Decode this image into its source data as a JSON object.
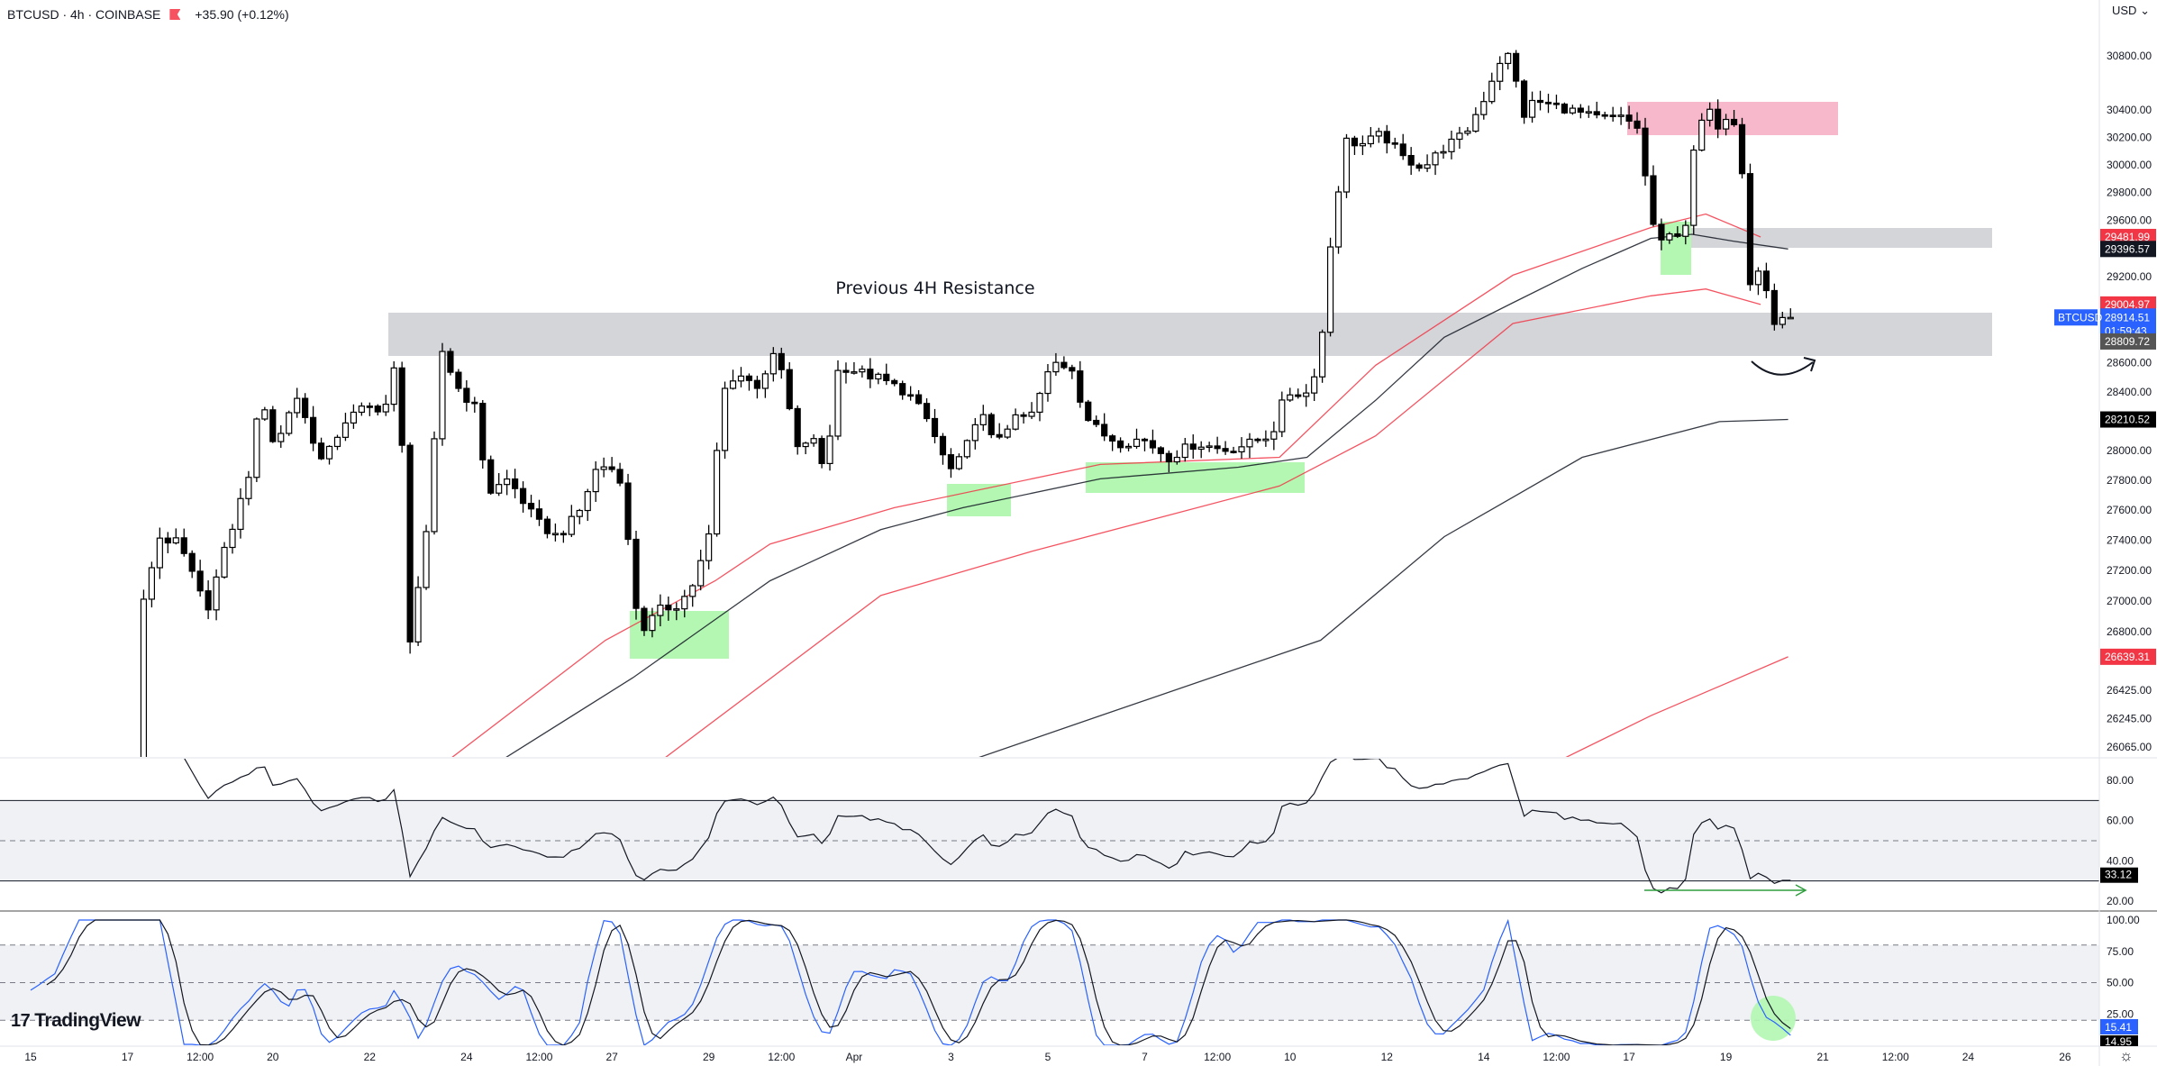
{
  "header": {
    "symbol_line": "BTCUSD · 4h · COINBASE",
    "change": "+35.90 (+0.12%)",
    "currency": "USD",
    "currency_chevron": "⌄"
  },
  "logo": {
    "mark": "17",
    "text": "TradingView"
  },
  "annotation": "Previous 4H Resistance",
  "colors": {
    "red": "#f23645",
    "blue": "#2962ff",
    "black": "#131722",
    "zone_grey": "#d4d5d9",
    "zone_pink": "#f7b8cc",
    "zone_green": "#b3f7b3",
    "band": "#f0f1f4"
  },
  "chart_data": {
    "type": "candlestick",
    "title": "BTCUSD · 4h · COINBASE",
    "scale": "log",
    "price_axis_ticks": [
      "30800.00",
      "30400.00",
      "30200.00",
      "30000.00",
      "29800.00",
      "29600.00",
      "29200.00",
      "28600.00",
      "28400.00",
      "28000.00",
      "27800.00",
      "27600.00",
      "27400.00",
      "27200.00",
      "27000.00",
      "26800.00",
      "26425.00",
      "26245.00",
      "26065.00"
    ],
    "time_axis": [
      {
        "label": "15",
        "day": 0
      },
      {
        "label": "17",
        "day": 2
      },
      {
        "label": "12:00",
        "day": 3.5
      },
      {
        "label": "20",
        "day": 5
      },
      {
        "label": "22",
        "day": 7
      },
      {
        "label": "24",
        "day": 9
      },
      {
        "label": "12:00",
        "day": 10.5
      },
      {
        "label": "27",
        "day": 12
      },
      {
        "label": "29",
        "day": 14
      },
      {
        "label": "12:00",
        "day": 15.5
      },
      {
        "label": "Apr",
        "day": 17
      },
      {
        "label": "3",
        "day": 19
      },
      {
        "label": "5",
        "day": 21
      },
      {
        "label": "7",
        "day": 23
      },
      {
        "label": "12:00",
        "day": 24.5
      },
      {
        "label": "10",
        "day": 26
      },
      {
        "label": "12",
        "day": 28
      },
      {
        "label": "14",
        "day": 30
      },
      {
        "label": "12:00",
        "day": 31.5
      },
      {
        "label": "17",
        "day": 33
      },
      {
        "label": "19",
        "day": 35
      },
      {
        "label": "21",
        "day": 37
      },
      {
        "label": "12:00",
        "day": 38.5
      },
      {
        "label": "24",
        "day": 40
      },
      {
        "label": "26",
        "day": 42
      }
    ],
    "close_waypoints_candle_index_price": [
      [
        -30,
        24500
      ],
      [
        0,
        25500
      ],
      [
        13,
        25970
      ],
      [
        14,
        26988
      ],
      [
        15.8,
        27423
      ],
      [
        18.4,
        27374
      ],
      [
        21.8,
        26940
      ],
      [
        24.3,
        27374
      ],
      [
        26.9,
        27809
      ],
      [
        28.6,
        28390
      ],
      [
        30.3,
        28003
      ],
      [
        32.8,
        28390
      ],
      [
        36.2,
        27906
      ],
      [
        38.8,
        28196
      ],
      [
        41.4,
        28292
      ],
      [
        43.9,
        28292
      ],
      [
        45.6,
        28679
      ],
      [
        46.8,
        26698
      ],
      [
        49,
        27423
      ],
      [
        51,
        28679
      ],
      [
        52.8,
        28437
      ],
      [
        55,
        28292
      ],
      [
        56.7,
        27713
      ],
      [
        59.2,
        27809
      ],
      [
        62.7,
        27519
      ],
      [
        65.2,
        27423
      ],
      [
        67.8,
        27568
      ],
      [
        70.3,
        27906
      ],
      [
        72.9,
        27858
      ],
      [
        75.4,
        26794
      ],
      [
        78,
        26940
      ],
      [
        80.5,
        26988
      ],
      [
        82.3,
        27133
      ],
      [
        84,
        27423
      ],
      [
        85.7,
        28390
      ],
      [
        87.4,
        28534
      ],
      [
        89.9,
        28437
      ],
      [
        92.5,
        28679
      ],
      [
        95,
        28003
      ],
      [
        96.7,
        28100
      ],
      [
        98.4,
        27858
      ],
      [
        100.1,
        28583
      ],
      [
        102.7,
        28534
      ],
      [
        105.3,
        28486
      ],
      [
        108.7,
        28390
      ],
      [
        111.2,
        28196
      ],
      [
        113.8,
        27858
      ],
      [
        115.5,
        27954
      ],
      [
        117.5,
        28292
      ],
      [
        119.2,
        28051
      ],
      [
        121.4,
        28196
      ],
      [
        124,
        28244
      ],
      [
        126.6,
        28602
      ],
      [
        129.1,
        28563
      ],
      [
        130.5,
        28244
      ],
      [
        132.5,
        28118
      ],
      [
        135.1,
        28051
      ],
      [
        137.6,
        28080
      ],
      [
        141,
        27954
      ],
      [
        144.4,
        28051
      ],
      [
        147.8,
        28003
      ],
      [
        151.3,
        28051
      ],
      [
        153.8,
        28118
      ],
      [
        155.5,
        28390
      ],
      [
        158.1,
        28390
      ],
      [
        159.8,
        28660
      ],
      [
        160.6,
        29259
      ],
      [
        161.8,
        29742
      ],
      [
        162.8,
        30177
      ],
      [
        164.9,
        30148
      ],
      [
        167.4,
        30225
      ],
      [
        170,
        30051
      ],
      [
        172.6,
        29983
      ],
      [
        175.1,
        30129
      ],
      [
        177.7,
        30225
      ],
      [
        179.9,
        30467
      ],
      [
        181.9,
        30757
      ],
      [
        183.6,
        30825
      ],
      [
        184.5,
        30322
      ],
      [
        186.2,
        30467
      ],
      [
        189.6,
        30419
      ],
      [
        193.9,
        30341
      ],
      [
        197.3,
        30341
      ],
      [
        199,
        30274
      ],
      [
        200.2,
        29839
      ],
      [
        201.5,
        29404
      ],
      [
        203.2,
        29500
      ],
      [
        204.9,
        29530
      ],
      [
        206.1,
        30129
      ],
      [
        207.5,
        30419
      ],
      [
        209.2,
        30274
      ],
      [
        210.6,
        30419
      ],
      [
        211.8,
        30129
      ],
      [
        213,
        29162
      ],
      [
        214.3,
        29259
      ],
      [
        216,
        28872
      ],
      [
        217,
        28920
      ],
      [
        218,
        28914.51
      ]
    ],
    "moving_averages": [
      {
        "name": "ma-black-fast",
        "color": "#131722",
        "points": [
          [
            55,
            25876
          ],
          [
            74.6,
            26505
          ],
          [
            91.6,
            27133
          ],
          [
            105.3,
            27470
          ],
          [
            115.5,
            27616
          ],
          [
            132.5,
            27809
          ],
          [
            149.6,
            27887
          ],
          [
            158.1,
            27954
          ],
          [
            166.6,
            28341
          ],
          [
            175.1,
            28776
          ],
          [
            183.6,
            29017
          ],
          [
            192.2,
            29259
          ],
          [
            200.7,
            29472
          ],
          [
            205.8,
            29501
          ],
          [
            210.9,
            29452
          ],
          [
            217.7,
            29396.57
          ]
        ]
      },
      {
        "name": "envelope-upper",
        "color": "#f23645",
        "points": [
          [
            49,
            25876
          ],
          [
            71.2,
            26746
          ],
          [
            84.8,
            27133
          ],
          [
            91.6,
            27375
          ],
          [
            107,
            27616
          ],
          [
            132.5,
            27906
          ],
          [
            154.7,
            27954
          ],
          [
            166.6,
            28582
          ],
          [
            183.6,
            29211
          ],
          [
            200.7,
            29549
          ],
          [
            207.5,
            29646
          ],
          [
            214.3,
            29481.99
          ]
        ]
      },
      {
        "name": "envelope-lower",
        "color": "#f23645",
        "points": [
          [
            75.4,
            25876
          ],
          [
            105.3,
            27036
          ],
          [
            124,
            27326
          ],
          [
            154.7,
            27761
          ],
          [
            166.6,
            28099
          ],
          [
            183.6,
            28872
          ],
          [
            200.7,
            29066
          ],
          [
            207.5,
            29114
          ],
          [
            214.3,
            29004.97
          ]
        ]
      },
      {
        "name": "ma-black-slow",
        "color": "#131722",
        "points": [
          [
            110.4,
            25876
          ],
          [
            132.5,
            26263
          ],
          [
            159.8,
            26746
          ],
          [
            175.1,
            27423
          ],
          [
            192.2,
            27954
          ],
          [
            209.2,
            28196
          ],
          [
            217.7,
            28210.52
          ]
        ]
      },
      {
        "name": "envelope-slow-lower",
        "color": "#f23645",
        "points": [
          [
            185.2,
            25876
          ],
          [
            200.7,
            26263
          ],
          [
            217.7,
            26639.31
          ]
        ]
      }
    ],
    "price_tags": [
      {
        "value": "29481.99",
        "bg": "#f23645",
        "price": 29481.99
      },
      {
        "value": "29396.57",
        "bg": "#131722",
        "price": 29396.57
      },
      {
        "value": "29004.97",
        "bg": "#f23645",
        "price": 29004.97
      },
      {
        "value": "28914.51",
        "bg": "#2962ff",
        "price": 28914.51,
        "symbol": "BTCUSD",
        "countdown": "01:59:43"
      },
      {
        "value": "28809.72",
        "bg": "#555555",
        "price": 28809.72
      },
      {
        "value": "28210.52",
        "bg": "#000000",
        "price": 28210.52
      },
      {
        "value": "26639.31",
        "bg": "#f23645",
        "price": 26639.31
      }
    ],
    "rsi": {
      "ticks": [
        "80.00",
        "60.00",
        "40.00",
        "20.00"
      ],
      "upper": 70,
      "mid": 50,
      "lower": 30,
      "last": "33.12"
    },
    "stoch_rsi": {
      "ticks": [
        "100.00",
        "75.00",
        "50.00",
        "25.00"
      ],
      "upper": 80,
      "mid": 50,
      "lower": 20,
      "last_k": "15.41",
      "last_d": "14.95"
    }
  }
}
